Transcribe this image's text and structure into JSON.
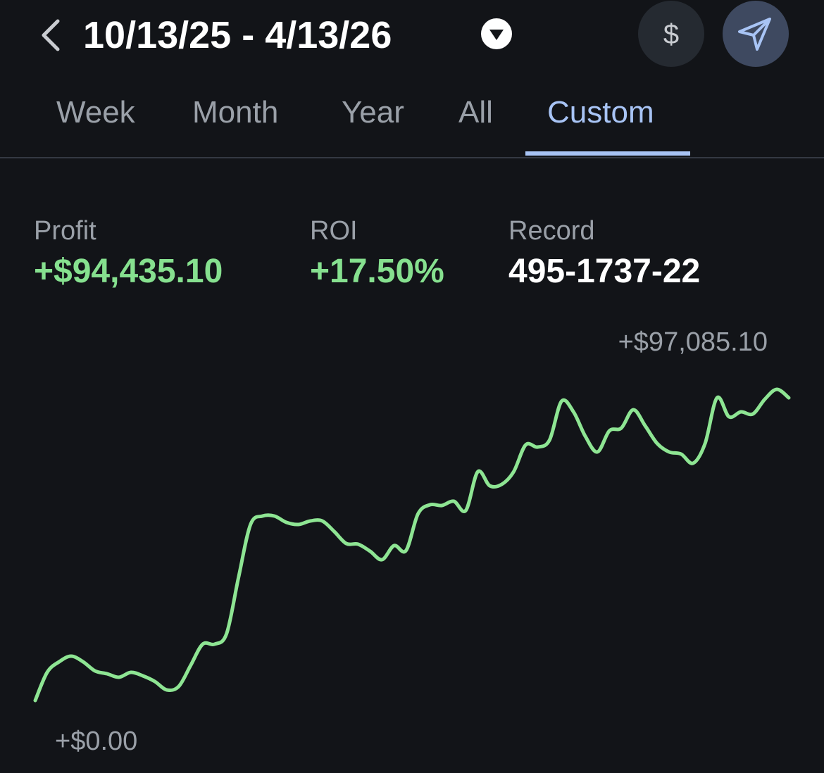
{
  "header": {
    "title": "10/13/25 - 4/13/26",
    "currency_button": "$"
  },
  "tabs": [
    "Week",
    "Month",
    "Year",
    "All",
    "Custom"
  ],
  "stats": [
    {
      "label": "Profit",
      "value": "+$94,435.10"
    },
    {
      "label": "ROI",
      "value": "+17.50%"
    },
    {
      "label": "Record",
      "value": "495-1737-22"
    }
  ],
  "chart_data": {
    "type": "line",
    "color": "#8ee593",
    "annotations": [
      {
        "value": 97085.1,
        "label": "+$97,085.10"
      },
      {
        "value": 0,
        "label": "+$0.00"
      }
    ],
    "values": [
      0,
      8786,
      12081,
      13838,
      12081,
      9225,
      8347,
      7248,
      8786,
      7688,
      5931,
      3295,
      4393,
      10983,
      17572,
      17572,
      20867,
      38439,
      54913,
      57548,
      57548,
      55572,
      54913,
      56011,
      56011,
      52716,
      48982,
      48763,
      46566,
      43930,
      48323,
      46786,
      58207,
      61063,
      60843,
      62161,
      59305,
      71386,
      66993,
      67432,
      71386,
      79733,
      79074,
      81271,
      93352,
      90057,
      82369,
      77537,
      84126,
      85005,
      90716,
      85664,
      80173,
      77537,
      76878,
      74022,
      80173,
      94450,
      88519,
      90057,
      89398,
      94011,
      97085.1,
      94435.1
    ]
  }
}
